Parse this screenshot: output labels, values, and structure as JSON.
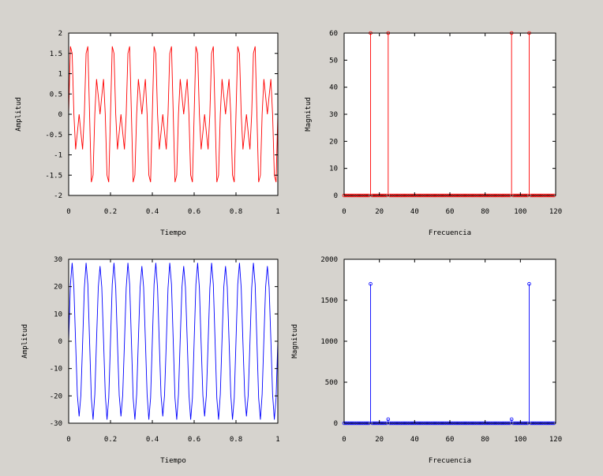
{
  "chart_data": [
    {
      "type": "line",
      "xlabel": "Tiempo",
      "ylabel": "Amplitud",
      "xlim": [
        0,
        1
      ],
      "ylim": [
        -2,
        2
      ],
      "xticks": [
        "0",
        "0.2",
        "0.4",
        "0.6",
        "0.8",
        "1"
      ],
      "yticks": [
        "-2",
        "-1.5",
        "-1",
        "-0.5",
        "0",
        "0.5",
        "1",
        "1.5",
        "2"
      ],
      "color": "#ff0000",
      "series": [
        {
          "sample_rate": 120,
          "t_start": 0,
          "t_end": 1,
          "components": [
            {
              "amplitude": 1,
              "frequency": 15
            },
            {
              "amplitude": 1,
              "frequency": 25
            }
          ]
        }
      ]
    },
    {
      "type": "stem",
      "xlabel": "Frecuencia",
      "ylabel": "Magnitud",
      "xlim": [
        0,
        120
      ],
      "ylim": [
        0,
        60
      ],
      "xticks": [
        "0",
        "20",
        "40",
        "60",
        "80",
        "100",
        "120"
      ],
      "yticks": [
        "0",
        "10",
        "20",
        "30",
        "40",
        "50",
        "60"
      ],
      "color": "#ff0000",
      "x": [
        0,
        119
      ],
      "baseline": 0,
      "peaks": [
        {
          "x": 15,
          "y": 60
        },
        {
          "x": 25,
          "y": 60
        },
        {
          "x": 95,
          "y": 60
        },
        {
          "x": 105,
          "y": 60
        }
      ]
    },
    {
      "type": "line",
      "xlabel": "Tiempo",
      "ylabel": "Amplitud",
      "xlim": [
        0,
        1
      ],
      "ylim": [
        -30,
        30
      ],
      "xticks": [
        "0",
        "0.2",
        "0.4",
        "0.6",
        "0.8",
        "1"
      ],
      "yticks": [
        "-30",
        "-20",
        "-10",
        "0",
        "10",
        "20",
        "30"
      ],
      "color": "#0000ff",
      "series": [
        {
          "sample_rate": 120,
          "t_start": 0,
          "t_end": 1,
          "components": [
            {
              "amplitude": 28.3,
              "frequency": 15
            },
            {
              "amplitude": 0.8,
              "frequency": 25
            }
          ]
        }
      ]
    },
    {
      "type": "stem",
      "xlabel": "Frecuencia",
      "ylabel": "Magnitud",
      "xlim": [
        0,
        120
      ],
      "ylim": [
        0,
        2000
      ],
      "xticks": [
        "0",
        "20",
        "40",
        "60",
        "80",
        "100",
        "120"
      ],
      "yticks": [
        "0",
        "500",
        "1000",
        "1500",
        "2000"
      ],
      "color": "#0000ff",
      "x": [
        0,
        119
      ],
      "baseline": 0,
      "peaks": [
        {
          "x": 15,
          "y": 1700
        },
        {
          "x": 25,
          "y": 48
        },
        {
          "x": 95,
          "y": 48
        },
        {
          "x": 105,
          "y": 1700
        }
      ]
    }
  ]
}
